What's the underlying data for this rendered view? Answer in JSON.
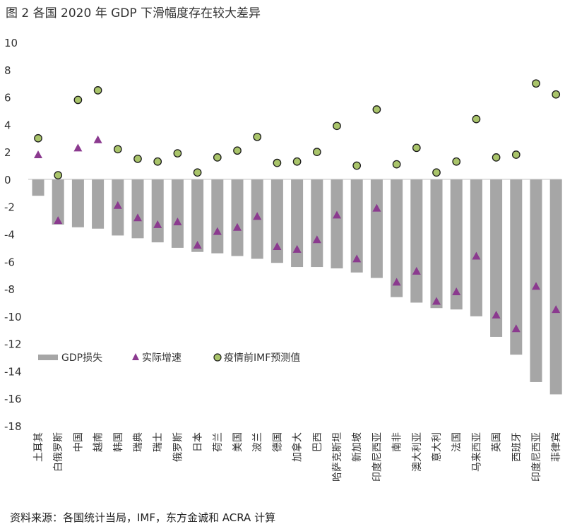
{
  "title": "图 2 各国 2020 年 GDP 下滑幅度存在较大差异",
  "source": "资料来源：各国统计当局，IMF，东方金诚和 ACRA 计算",
  "colors": {
    "bar": "#a6a6a6",
    "triangle": "#8b3a8f",
    "circle_fill": "#a9c46a",
    "circle_stroke": "#1a1a1a"
  },
  "chart_data": {
    "type": "bar",
    "categories": [
      "土耳其",
      "白俄罗斯",
      "中国",
      "越南",
      "韩国",
      "瑞典",
      "瑞士",
      "俄罗斯",
      "日本",
      "荷兰",
      "美国",
      "波兰",
      "德国",
      "加拿大",
      "巴西",
      "哈萨克斯坦",
      "新加坡",
      "印度尼西亚",
      "南非",
      "澳大利亚",
      "意大利",
      "法国",
      "马来西亚",
      "英国",
      "西班牙",
      "印度尼西亚",
      "菲律宾"
    ],
    "ylim": [
      -18,
      10
    ],
    "yticks": [
      10,
      8,
      6,
      4,
      2,
      0,
      -2,
      -4,
      -6,
      -8,
      -10,
      -12,
      -14,
      -16,
      -18
    ],
    "grid": false,
    "legend_position": "bottom-left",
    "series": [
      {
        "name": "GDP损失",
        "kind": "bar",
        "values": [
          -1.2,
          -3.3,
          -3.5,
          -3.6,
          -4.1,
          -4.3,
          -4.6,
          -5.0,
          -5.3,
          -5.4,
          -5.6,
          -5.8,
          -6.1,
          -6.4,
          -6.4,
          -6.5,
          -6.8,
          -7.2,
          -8.6,
          -9.0,
          -9.4,
          -9.5,
          -10.0,
          -11.5,
          -12.8,
          -14.8,
          -15.7
        ]
      },
      {
        "name": "实际增速",
        "kind": "triangle",
        "values": [
          1.8,
          -3.0,
          2.3,
          2.9,
          -1.9,
          -2.8,
          -3.3,
          -3.1,
          -4.8,
          -3.8,
          -3.5,
          -2.7,
          -4.9,
          -5.1,
          -4.4,
          -2.6,
          -5.8,
          -2.1,
          -7.5,
          -6.7,
          -8.9,
          -8.2,
          -5.6,
          -9.9,
          -10.9,
          -7.8,
          -9.5
        ]
      },
      {
        "name": "疫情前IMF预测值",
        "kind": "circle",
        "values": [
          3.0,
          0.3,
          5.8,
          6.5,
          2.2,
          1.5,
          1.3,
          1.9,
          0.5,
          1.6,
          2.1,
          3.1,
          1.2,
          1.3,
          2.0,
          3.9,
          1.0,
          5.1,
          1.1,
          2.3,
          0.5,
          1.3,
          4.4,
          1.6,
          1.8,
          7.0,
          6.2
        ]
      }
    ]
  }
}
